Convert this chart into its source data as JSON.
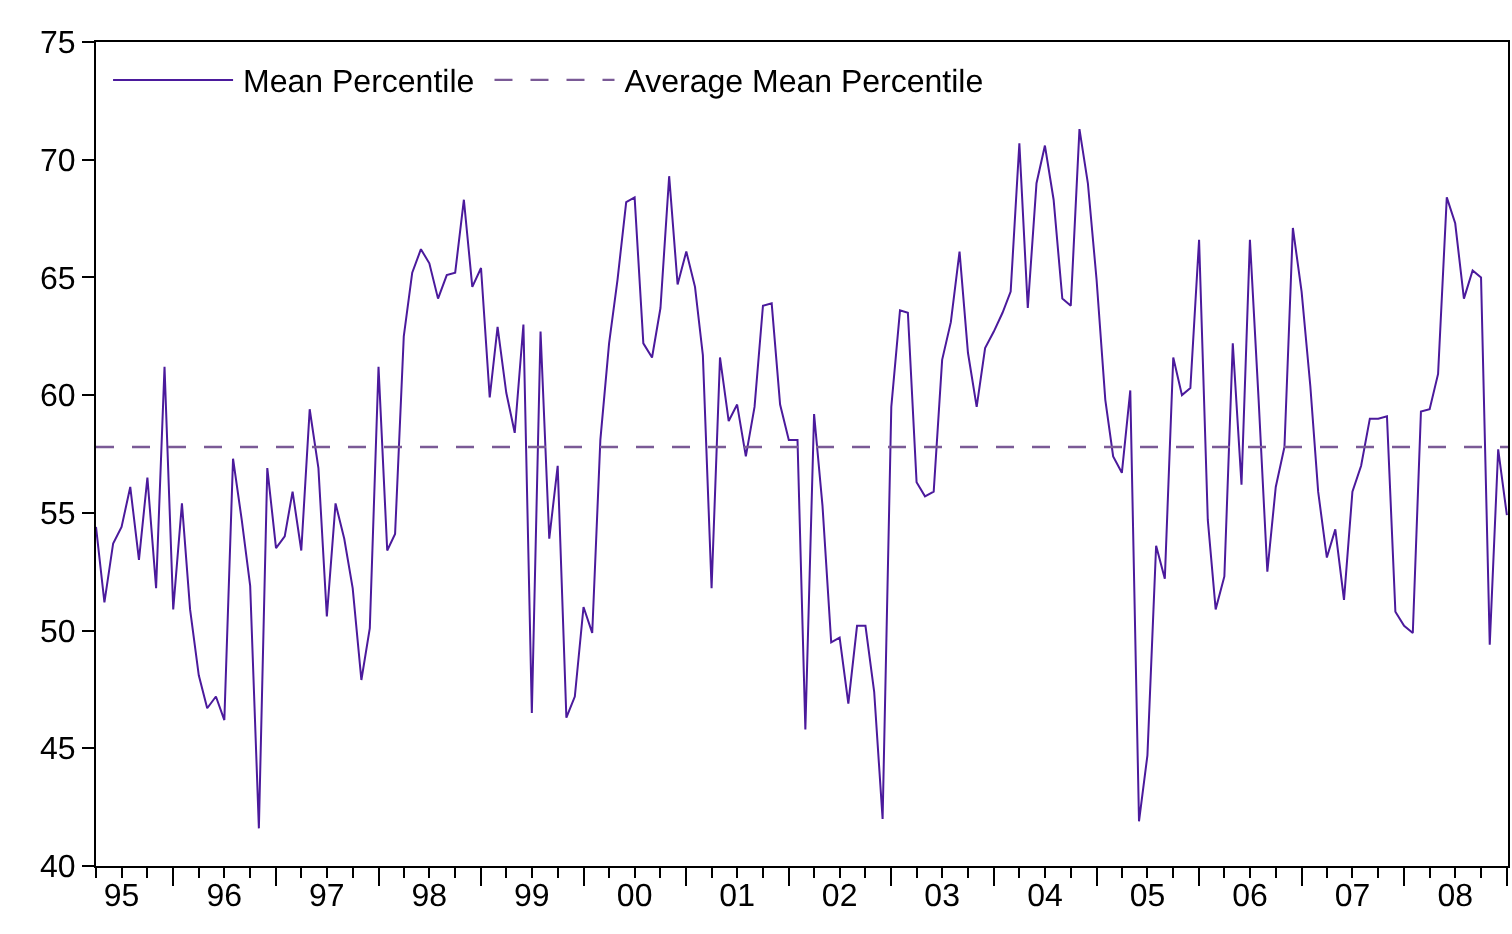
{
  "chart_data": {
    "type": "line",
    "x": [
      "1995-04",
      "1995-05",
      "1995-06",
      "1995-07",
      "1995-08",
      "1995-09",
      "1995-10",
      "1995-11",
      "1995-12",
      "1996-01",
      "1996-02",
      "1996-03",
      "1996-04",
      "1996-05",
      "1996-06",
      "1996-07",
      "1996-08",
      "1996-09",
      "1996-10",
      "1996-11",
      "1996-12",
      "1997-01",
      "1997-02",
      "1997-03",
      "1997-04",
      "1997-05",
      "1997-06",
      "1997-07",
      "1997-08",
      "1997-09",
      "1997-10",
      "1997-11",
      "1997-12",
      "1998-01",
      "1998-02",
      "1998-03",
      "1998-04",
      "1998-05",
      "1998-06",
      "1998-07",
      "1998-08",
      "1998-09",
      "1998-10",
      "1998-11",
      "1998-12",
      "1999-01",
      "1999-02",
      "1999-03",
      "1999-04",
      "1999-05",
      "1999-06",
      "1999-07",
      "1999-08",
      "1999-09",
      "1999-10",
      "1999-11",
      "1999-12",
      "2000-01",
      "2000-02",
      "2000-03",
      "2000-04",
      "2000-05",
      "2000-06",
      "2000-07",
      "2000-08",
      "2000-09",
      "2000-10",
      "2000-11",
      "2000-12",
      "2001-01",
      "2001-02",
      "2001-03",
      "2001-04",
      "2001-05",
      "2001-06",
      "2001-07",
      "2001-08",
      "2001-09",
      "2001-10",
      "2001-11",
      "2001-12",
      "2002-01",
      "2002-02",
      "2002-03",
      "2002-04",
      "2002-05",
      "2002-06",
      "2002-07",
      "2002-08",
      "2002-09",
      "2002-10",
      "2002-11",
      "2002-12",
      "2003-01",
      "2003-02",
      "2003-03",
      "2003-04",
      "2003-05",
      "2003-06",
      "2003-07",
      "2003-08",
      "2003-09",
      "2003-10",
      "2003-11",
      "2003-12",
      "2004-01",
      "2004-02",
      "2004-03",
      "2004-04",
      "2004-05",
      "2004-06",
      "2004-07",
      "2004-08",
      "2004-09",
      "2004-10",
      "2004-11",
      "2004-12",
      "2005-01",
      "2005-02",
      "2005-03",
      "2005-04",
      "2005-05",
      "2005-06",
      "2005-07",
      "2005-08",
      "2005-09",
      "2005-10",
      "2005-11",
      "2005-12",
      "2006-01",
      "2006-02",
      "2006-03",
      "2006-04",
      "2006-05",
      "2006-06",
      "2006-07",
      "2006-08",
      "2006-09",
      "2006-10",
      "2006-11",
      "2006-12",
      "2007-01",
      "2007-02",
      "2007-03",
      "2007-04",
      "2007-05",
      "2007-06",
      "2007-07",
      "2007-08",
      "2007-09",
      "2007-10",
      "2007-11",
      "2007-12",
      "2008-01",
      "2008-02",
      "2008-03",
      "2008-04",
      "2008-05",
      "2008-06",
      "2008-07",
      "2008-08",
      "2008-09",
      "2008-10",
      "2008-11",
      "2008-12",
      "2009-01"
    ],
    "series": [
      {
        "name": "Mean Percentile",
        "color": "#4b1a9c",
        "values": [
          54.4,
          51.2,
          53.7,
          54.4,
          56.1,
          53.0,
          56.5,
          51.8,
          61.2,
          50.9,
          55.4,
          50.9,
          48.1,
          46.7,
          47.2,
          46.2,
          57.3,
          54.7,
          51.9,
          41.6,
          56.9,
          53.5,
          54.0,
          55.9,
          53.4,
          59.4,
          56.9,
          50.6,
          55.4,
          53.9,
          51.8,
          47.9,
          50.1,
          61.2,
          53.4,
          54.1,
          62.5,
          65.2,
          66.2,
          65.6,
          64.1,
          65.1,
          65.2,
          68.3,
          64.6,
          65.4,
          59.9,
          62.9,
          60.1,
          58.4,
          63.0,
          46.5,
          62.7,
          53.9,
          57.0,
          46.3,
          47.2,
          51.0,
          49.9,
          58.1,
          62.2,
          64.9,
          68.2,
          68.4,
          62.2,
          61.6,
          63.7,
          69.3,
          64.7,
          66.1,
          64.6,
          61.7,
          51.8,
          61.6,
          58.9,
          59.6,
          57.4,
          59.5,
          63.8,
          63.9,
          59.6,
          58.1,
          58.1,
          45.8,
          59.2,
          55.3,
          49.5,
          49.7,
          46.9,
          50.2,
          50.2,
          47.4,
          42.0,
          59.5,
          63.6,
          63.5,
          56.3,
          55.7,
          55.9,
          61.5,
          63.1,
          66.1,
          61.8,
          59.5,
          62.0,
          62.7,
          63.5,
          64.4,
          70.7,
          63.7,
          69.0,
          70.6,
          68.3,
          64.1,
          63.8,
          71.3,
          69.0,
          64.9,
          59.8,
          57.4,
          56.7,
          60.2,
          41.9,
          44.7,
          53.6,
          52.2,
          61.6,
          60.0,
          60.3,
          66.6,
          54.7,
          50.9,
          52.3,
          62.2,
          56.2,
          66.6,
          59.8,
          52.5,
          56.1,
          57.8,
          67.1,
          64.4,
          60.4,
          55.9,
          53.1,
          54.3,
          51.3,
          55.9,
          57.0,
          59.0,
          59.0,
          59.1,
          50.8,
          50.2,
          49.9,
          59.3,
          59.4,
          60.9,
          68.4,
          67.3,
          64.1,
          65.3,
          65.0,
          49.4,
          57.7,
          54.9
        ]
      }
    ],
    "ref_lines": [
      {
        "axis": "y",
        "value": 57.8,
        "label": "Average Mean Percentile",
        "color": "#7a5a96",
        "line_style": "dashed"
      }
    ],
    "xlim": [
      "1995-04-01",
      "2009-01-05"
    ],
    "xticks": [
      {
        "value": "1995-07-01",
        "label": "95"
      },
      {
        "value": "1996-07-01",
        "label": "96"
      },
      {
        "value": "1997-07-01",
        "label": "97"
      },
      {
        "value": "1998-07-01",
        "label": "98"
      },
      {
        "value": "1999-07-01",
        "label": "99"
      },
      {
        "value": "2000-07-01",
        "label": "00"
      },
      {
        "value": "2001-07-01",
        "label": "01"
      },
      {
        "value": "2002-07-01",
        "label": "02"
      },
      {
        "value": "2003-07-01",
        "label": "03"
      },
      {
        "value": "2004-07-01",
        "label": "04"
      },
      {
        "value": "2005-07-01",
        "label": "05"
      },
      {
        "value": "2006-07-01",
        "label": "06"
      },
      {
        "value": "2007-07-01",
        "label": "07"
      },
      {
        "value": "2008-07-01",
        "label": "08"
      }
    ],
    "ylim": [
      40,
      75
    ],
    "yticks": [
      40,
      45,
      50,
      55,
      60,
      65,
      70,
      75
    ],
    "legend": "top left",
    "marker": "none",
    "line_style": "solid"
  }
}
